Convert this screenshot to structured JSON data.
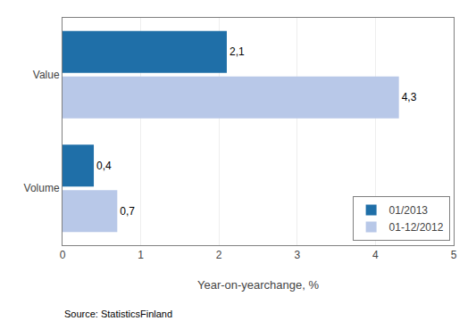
{
  "chart_data": {
    "type": "bar",
    "orientation": "horizontal",
    "categories": [
      "Volume",
      "Value"
    ],
    "series": [
      {
        "name": "01/2013",
        "color": "#1f6fa8",
        "values": [
          0.4,
          2.1
        ],
        "value_labels": [
          "0,4",
          "2,1"
        ]
      },
      {
        "name": "01-12/2012",
        "color": "#b8c8e8",
        "values": [
          0.7,
          4.3
        ],
        "value_labels": [
          "0,7",
          "4,3"
        ]
      }
    ],
    "xlabel": "Year-on-yearchange, %",
    "xlim": [
      0,
      5
    ],
    "xticks": [
      0,
      1,
      2,
      3,
      4,
      5
    ],
    "grid": true,
    "legend": "lower right",
    "data_labels": true,
    "annotations": [
      "Source: StatisticsFinland"
    ]
  }
}
